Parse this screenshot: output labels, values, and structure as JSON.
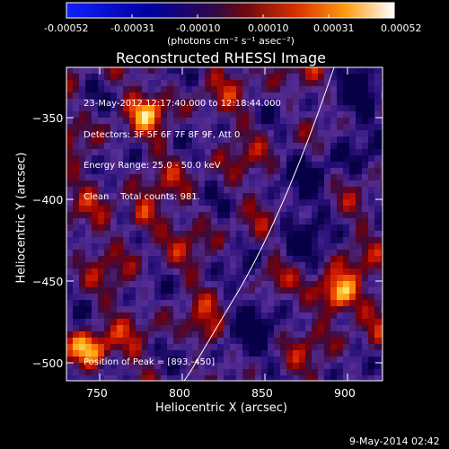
{
  "colorbar": {
    "ticks": [
      "-0.00052",
      "-0.00031",
      "-0.00010",
      "0.00010",
      "0.00031",
      "0.00052"
    ],
    "units": "(photons cm⁻² s⁻¹ asec⁻²)",
    "colors": [
      "#1010ff",
      "#00008a",
      "#3a0a5a",
      "#b0220a",
      "#ff7a00",
      "#ffffff"
    ]
  },
  "plot": {
    "title": "Reconstructed RHESSI Image",
    "xlabel": "Heliocentric X (arcsec)",
    "ylabel": "Heliocentric Y (arcsec)",
    "x_ticks": [
      "750",
      "800",
      "850",
      "900"
    ],
    "y_ticks": [
      "−350",
      "−400",
      "−450",
      "−500"
    ],
    "xlim": [
      731,
      923
    ],
    "ylim": [
      -511,
      -330
    ],
    "info_lines": [
      "23-May-2012 12:17:40.000 to 12:18:44.000",
      "Detectors: 3F 5F 6F 7F 8F 9F, Att 0",
      "Energy Range: 25.0 - 50.0 keV",
      "Clean    Total counts: 981."
    ],
    "peak_label": "Position of Peak = [893,-450]",
    "limb_color": "#ffffff"
  },
  "footer": {
    "date": "9-May-2014 02:42"
  }
}
